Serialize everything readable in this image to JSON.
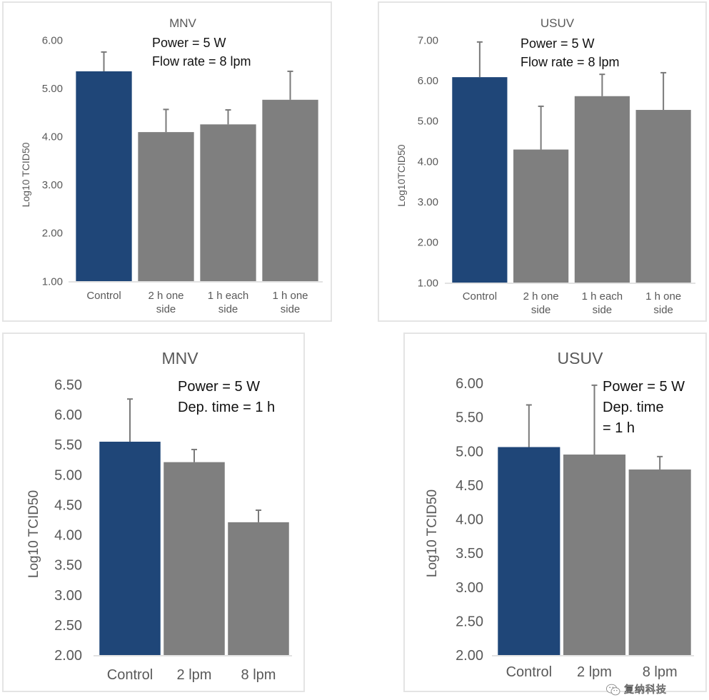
{
  "colors": {
    "control": "#1f4678",
    "treatment": "#7f7f7f",
    "error_bar": "#7a7a7a",
    "axis_text": "#595959",
    "annotation_text": "#111111",
    "axis_line": "#d9d9d9"
  },
  "chart_data": [
    {
      "type": "bar",
      "title": "MNV",
      "annotation": [
        "Power = 5 W",
        "Flow rate = 8 lpm"
      ],
      "xlabel": "",
      "ylabel": "Log10 TCID50",
      "ylim": [
        1.0,
        6.0
      ],
      "yticks": [
        "1.00",
        "2.00",
        "3.00",
        "4.00",
        "5.00",
        "6.00"
      ],
      "categories": [
        [
          "Control"
        ],
        [
          "2 h one",
          "side"
        ],
        [
          "1 h each",
          "side"
        ],
        [
          "1 h one",
          "side"
        ]
      ],
      "values": [
        5.35,
        4.09,
        4.25,
        4.76
      ],
      "error_upper": [
        0.4,
        0.47,
        0.3,
        0.59
      ],
      "bar_colors": [
        "control",
        "treatment",
        "treatment",
        "treatment"
      ],
      "grid": false
    },
    {
      "type": "bar",
      "title": "USUV",
      "annotation": [
        "Power = 5 W",
        "Flow rate = 8 lpm"
      ],
      "xlabel": "",
      "ylabel": "Log10TCID50",
      "ylim": [
        1.0,
        7.0
      ],
      "yticks": [
        "1.00",
        "2.00",
        "3.00",
        "4.00",
        "5.00",
        "6.00",
        "7.00"
      ],
      "categories": [
        [
          "Control"
        ],
        [
          "2 h one",
          "side"
        ],
        [
          "1 h each",
          "side"
        ],
        [
          "1 h one",
          "side"
        ]
      ],
      "values": [
        6.08,
        4.29,
        5.61,
        5.27
      ],
      "error_upper": [
        0.87,
        1.07,
        0.54,
        0.92
      ],
      "bar_colors": [
        "control",
        "treatment",
        "treatment",
        "treatment"
      ],
      "grid": false
    },
    {
      "type": "bar",
      "title": "MNV",
      "annotation": [
        "Power = 5 W",
        "Dep. time = 1 h"
      ],
      "xlabel": "",
      "ylabel": "Log10 TCID50",
      "ylim": [
        2.0,
        6.5
      ],
      "yticks": [
        "2.00",
        "2.50",
        "3.00",
        "3.50",
        "4.00",
        "4.50",
        "5.00",
        "5.50",
        "6.00",
        "6.50"
      ],
      "categories": [
        [
          "Control"
        ],
        [
          "2 lpm"
        ],
        [
          "8 lpm"
        ]
      ],
      "values": [
        5.55,
        5.21,
        4.21
      ],
      "error_upper": [
        0.71,
        0.21,
        0.2
      ],
      "bar_colors": [
        "control",
        "treatment",
        "treatment"
      ],
      "grid": false
    },
    {
      "type": "bar",
      "title": "USUV",
      "annotation": [
        "Power = 5 W",
        "Dep. time",
        "= 1 h"
      ],
      "xlabel": "",
      "ylabel": "Log10 TCID50",
      "ylim": [
        2.0,
        6.0
      ],
      "yticks": [
        "2.00",
        "2.50",
        "3.00",
        "3.50",
        "4.00",
        "4.50",
        "5.00",
        "5.50",
        "6.00"
      ],
      "categories": [
        [
          "Control"
        ],
        [
          "2 lpm"
        ],
        [
          "8 lpm"
        ]
      ],
      "values": [
        5.06,
        4.95,
        4.73
      ],
      "error_upper": [
        0.62,
        1.02,
        0.19
      ],
      "bar_colors": [
        "control",
        "treatment",
        "treatment"
      ],
      "grid": false
    }
  ],
  "watermark": {
    "text": "复纳科技",
    "icon": "wechat-icon"
  }
}
